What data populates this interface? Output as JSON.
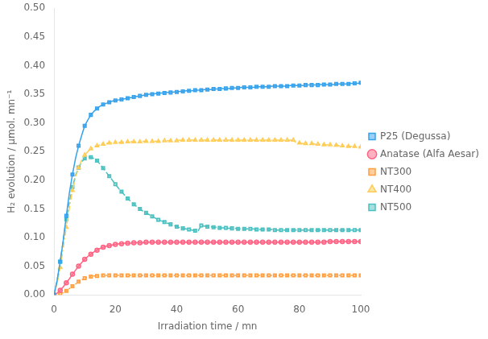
{
  "chart_data": {
    "type": "line",
    "xlabel": "Irradiation time / mn",
    "ylabel": "H₂ evolution / µmol. mn⁻¹",
    "xlim": [
      0,
      100
    ],
    "ylim": [
      0,
      0.5
    ],
    "xticks": [
      0,
      20,
      40,
      60,
      80,
      100
    ],
    "yticks": [
      {
        "value": 0,
        "label": "0.00"
      },
      0.05,
      {
        "value": 0.1,
        "label": "0.10"
      },
      0.15,
      {
        "value": 0.2,
        "label": "0.20"
      },
      0.25,
      {
        "value": 0.3,
        "label": "0.30"
      },
      0.35,
      {
        "value": 0.4,
        "label": "0.40"
      },
      0.45,
      {
        "value": 0.5,
        "label": "0.50"
      }
    ],
    "grid": false,
    "legend": "right",
    "x": [
      0,
      1,
      2,
      3,
      4,
      5,
      6,
      7,
      8,
      9,
      10,
      11,
      12,
      13,
      14,
      15,
      16,
      17,
      18,
      19,
      20,
      21,
      22,
      23,
      24,
      25,
      26,
      27,
      28,
      29,
      30,
      31,
      32,
      33,
      34,
      35,
      36,
      37,
      38,
      39,
      40,
      41,
      42,
      43,
      44,
      45,
      46,
      47,
      48,
      49,
      50,
      51,
      52,
      53,
      54,
      55,
      56,
      57,
      58,
      59,
      60,
      61,
      62,
      63,
      64,
      65,
      66,
      67,
      68,
      69,
      70,
      71,
      72,
      73,
      74,
      75,
      76,
      77,
      78,
      79,
      80,
      81,
      82,
      83,
      84,
      85,
      86,
      87,
      88,
      89,
      90,
      91,
      92,
      93,
      94,
      95,
      96,
      97,
      98,
      99,
      100
    ],
    "series": [
      {
        "name": "P25 (Degussa)",
        "marker": "square",
        "line_style": "solid",
        "values": [
          0,
          0.025,
          0.058,
          0.095,
          0.138,
          0.178,
          0.21,
          0.238,
          0.26,
          0.278,
          0.295,
          0.305,
          0.314,
          0.32,
          0.325,
          0.329,
          0.332,
          0.334,
          0.336,
          0.338,
          0.339,
          0.34,
          0.341,
          0.342,
          0.343,
          0.344,
          0.345,
          0.346,
          0.347,
          0.348,
          0.349,
          0.35,
          0.35,
          0.351,
          0.351,
          0.352,
          0.352,
          0.353,
          0.353,
          0.354,
          0.354,
          0.355,
          0.355,
          0.356,
          0.356,
          0.356,
          0.357,
          0.357,
          0.357,
          0.358,
          0.358,
          0.358,
          0.359,
          0.359,
          0.359,
          0.36,
          0.36,
          0.36,
          0.361,
          0.361,
          0.361,
          0.362,
          0.362,
          0.362,
          0.362,
          0.362,
          0.363,
          0.363,
          0.363,
          0.363,
          0.363,
          0.364,
          0.364,
          0.364,
          0.364,
          0.364,
          0.364,
          0.365,
          0.365,
          0.365,
          0.365,
          0.365,
          0.366,
          0.366,
          0.366,
          0.366,
          0.366,
          0.367,
          0.367,
          0.367,
          0.367,
          0.367,
          0.368,
          0.368,
          0.368,
          0.368,
          0.368,
          0.369,
          0.369,
          0.369,
          0.37
        ]
      },
      {
        "name": "Anatase (Alfa Aesar)",
        "marker": "circle",
        "line_style": "solid",
        "values": [
          0,
          0.003,
          0.008,
          0.014,
          0.021,
          0.028,
          0.036,
          0.043,
          0.05,
          0.056,
          0.062,
          0.067,
          0.071,
          0.075,
          0.078,
          0.081,
          0.083,
          0.085,
          0.086,
          0.087,
          0.088,
          0.089,
          0.089,
          0.09,
          0.09,
          0.09,
          0.091,
          0.091,
          0.091,
          0.091,
          0.092,
          0.092,
          0.092,
          0.092,
          0.092,
          0.092,
          0.092,
          0.092,
          0.092,
          0.092,
          0.092,
          0.092,
          0.092,
          0.092,
          0.092,
          0.092,
          0.092,
          0.092,
          0.092,
          0.092,
          0.092,
          0.092,
          0.092,
          0.092,
          0.092,
          0.092,
          0.092,
          0.092,
          0.092,
          0.092,
          0.092,
          0.092,
          0.092,
          0.092,
          0.092,
          0.092,
          0.092,
          0.092,
          0.092,
          0.092,
          0.092,
          0.092,
          0.092,
          0.092,
          0.092,
          0.092,
          0.092,
          0.092,
          0.092,
          0.092,
          0.092,
          0.092,
          0.092,
          0.092,
          0.092,
          0.092,
          0.092,
          0.092,
          0.092,
          0.093,
          0.093,
          0.093,
          0.093,
          0.093,
          0.093,
          0.093,
          0.093,
          0.093,
          0.093,
          0.093,
          0.093
        ]
      },
      {
        "name": "NT300",
        "marker": "square",
        "line_style": "dotted",
        "values": [
          0,
          0.001,
          0.002,
          0.004,
          0.007,
          0.011,
          0.015,
          0.019,
          0.023,
          0.026,
          0.029,
          0.031,
          0.032,
          0.033,
          0.033,
          0.034,
          0.034,
          0.034,
          0.034,
          0.034,
          0.034,
          0.034,
          0.034,
          0.034,
          0.034,
          0.034,
          0.034,
          0.034,
          0.034,
          0.034,
          0.034,
          0.034,
          0.034,
          0.034,
          0.034,
          0.034,
          0.034,
          0.034,
          0.034,
          0.034,
          0.034,
          0.034,
          0.034,
          0.034,
          0.034,
          0.034,
          0.034,
          0.034,
          0.034,
          0.034,
          0.034,
          0.034,
          0.034,
          0.034,
          0.034,
          0.034,
          0.034,
          0.034,
          0.034,
          0.034,
          0.034,
          0.034,
          0.034,
          0.034,
          0.034,
          0.034,
          0.034,
          0.034,
          0.034,
          0.034,
          0.034,
          0.034,
          0.034,
          0.034,
          0.034,
          0.034,
          0.034,
          0.034,
          0.034,
          0.034,
          0.034,
          0.034,
          0.034,
          0.034,
          0.034,
          0.034,
          0.034,
          0.034,
          0.034,
          0.034,
          0.034,
          0.034,
          0.034,
          0.034,
          0.034,
          0.034,
          0.034,
          0.034,
          0.034,
          0.034,
          0.034
        ]
      },
      {
        "name": "NT400",
        "marker": "triangle",
        "line_style": "dashdot",
        "values": [
          0,
          0.02,
          0.048,
          0.082,
          0.118,
          0.152,
          0.182,
          0.205,
          0.222,
          0.235,
          0.244,
          0.25,
          0.255,
          0.258,
          0.26,
          0.262,
          0.263,
          0.264,
          0.265,
          0.265,
          0.266,
          0.266,
          0.266,
          0.267,
          0.267,
          0.267,
          0.267,
          0.267,
          0.267,
          0.268,
          0.268,
          0.268,
          0.268,
          0.268,
          0.268,
          0.269,
          0.269,
          0.269,
          0.269,
          0.269,
          0.269,
          0.27,
          0.27,
          0.27,
          0.27,
          0.27,
          0.27,
          0.27,
          0.27,
          0.27,
          0.27,
          0.27,
          0.27,
          0.27,
          0.27,
          0.27,
          0.27,
          0.27,
          0.27,
          0.27,
          0.27,
          0.27,
          0.27,
          0.27,
          0.27,
          0.27,
          0.27,
          0.27,
          0.27,
          0.27,
          0.27,
          0.27,
          0.27,
          0.27,
          0.27,
          0.27,
          0.27,
          0.27,
          0.27,
          0.265,
          0.265,
          0.264,
          0.264,
          0.264,
          0.264,
          0.263,
          0.263,
          0.263,
          0.262,
          0.262,
          0.262,
          0.261,
          0.261,
          0.26,
          0.26,
          0.26,
          0.259,
          0.259,
          0.259,
          0.258,
          0.258
        ]
      },
      {
        "name": "NT500",
        "marker": "square",
        "line_style": "dashed",
        "values": [
          0,
          0.025,
          0.058,
          0.095,
          0.132,
          0.162,
          0.188,
          0.208,
          0.222,
          0.232,
          0.238,
          0.24,
          0.24,
          0.238,
          0.234,
          0.228,
          0.221,
          0.214,
          0.207,
          0.2,
          0.193,
          0.186,
          0.18,
          0.174,
          0.168,
          0.163,
          0.158,
          0.154,
          0.15,
          0.146,
          0.143,
          0.14,
          0.137,
          0.134,
          0.131,
          0.129,
          0.127,
          0.125,
          0.123,
          0.121,
          0.119,
          0.117,
          0.116,
          0.115,
          0.114,
          0.113,
          0.112,
          0.112,
          0.121,
          0.12,
          0.119,
          0.119,
          0.118,
          0.118,
          0.117,
          0.117,
          0.117,
          0.116,
          0.116,
          0.116,
          0.115,
          0.115,
          0.115,
          0.115,
          0.115,
          0.115,
          0.114,
          0.114,
          0.114,
          0.114,
          0.114,
          0.114,
          0.113,
          0.113,
          0.113,
          0.113,
          0.113,
          0.113,
          0.113,
          0.113,
          0.113,
          0.113,
          0.113,
          0.113,
          0.113,
          0.113,
          0.113,
          0.113,
          0.113,
          0.113,
          0.113,
          0.113,
          0.113,
          0.113,
          0.113,
          0.113,
          0.113,
          0.113,
          0.113,
          0.113,
          0.113
        ]
      }
    ]
  }
}
